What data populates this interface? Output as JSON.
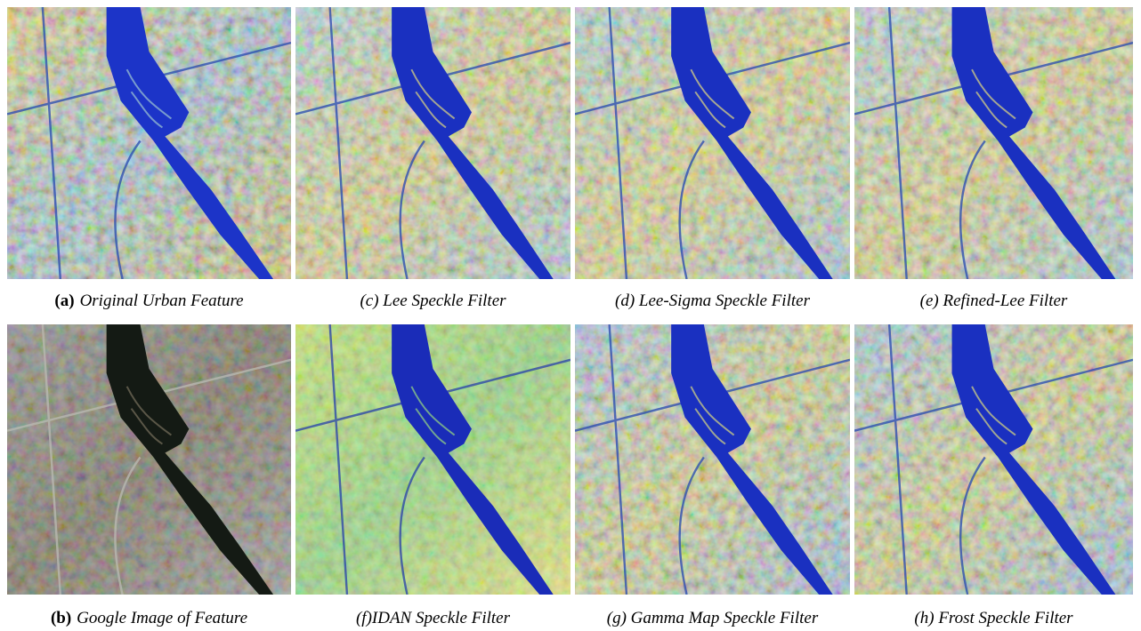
{
  "figure": {
    "panels": [
      {
        "label": "(a)",
        "caption": "Original Urban Feature"
      },
      {
        "caption": "(c) Lee Speckle Filter"
      },
      {
        "caption": "(d) Lee-Sigma Speckle Filter"
      },
      {
        "caption": "(e) Refined-Lee Filter"
      },
      {
        "label": "(b)",
        "caption": "Google Image of Feature"
      },
      {
        "caption": "(f)IDAN Speckle Filter"
      },
      {
        "caption": "(g) Gamma Map Speckle Filter"
      },
      {
        "caption": "(h) Frost Speckle Filter"
      }
    ]
  }
}
